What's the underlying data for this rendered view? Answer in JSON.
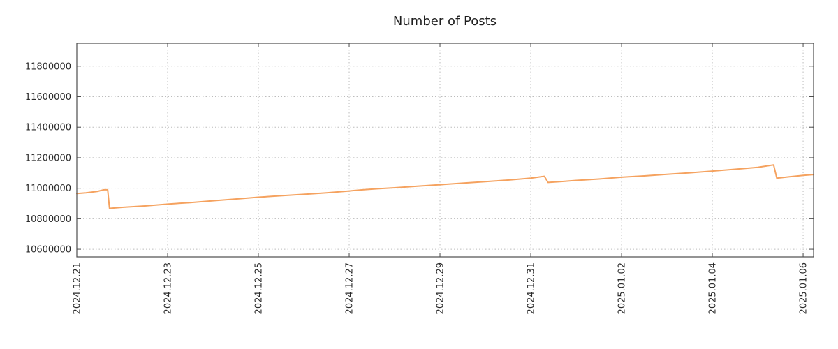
{
  "chart_data": {
    "type": "line",
    "title": "Number of Posts",
    "xlabel": "",
    "ylabel": "",
    "grid": true,
    "legend": "none",
    "xlim": [
      0,
      16.23
    ],
    "ylim": [
      10550000,
      11950000
    ],
    "x_tick_unit": "days since 2024.12.21",
    "x_ticks": [
      {
        "pos": 0,
        "label": "2024.12.21"
      },
      {
        "pos": 2,
        "label": "2024.12.23"
      },
      {
        "pos": 4,
        "label": "2024.12.25"
      },
      {
        "pos": 6,
        "label": "2024.12.27"
      },
      {
        "pos": 8,
        "label": "2024.12.29"
      },
      {
        "pos": 10,
        "label": "2024.12.31"
      },
      {
        "pos": 12,
        "label": "2025.01.02"
      },
      {
        "pos": 14,
        "label": "2025.01.04"
      },
      {
        "pos": 16,
        "label": "2025.01.06"
      }
    ],
    "y_ticks": [
      {
        "value": 10600000,
        "label": "10600000"
      },
      {
        "value": 10800000,
        "label": "10800000"
      },
      {
        "value": 11000000,
        "label": "11000000"
      },
      {
        "value": 11200000,
        "label": "11200000"
      },
      {
        "value": 11400000,
        "label": "11400000"
      },
      {
        "value": 11600000,
        "label": "11600000"
      },
      {
        "value": 11800000,
        "label": "11800000"
      }
    ],
    "series": [
      {
        "name": "number-of-posts",
        "color": "#f5a25f",
        "points": [
          [
            0.0,
            10965000
          ],
          [
            0.2,
            10970000
          ],
          [
            0.45,
            10979000
          ],
          [
            0.6,
            10990000
          ],
          [
            0.68,
            10990000
          ],
          [
            0.72,
            10868000
          ],
          [
            1.0,
            10875000
          ],
          [
            1.5,
            10884000
          ],
          [
            2.0,
            10896000
          ],
          [
            2.5,
            10906000
          ],
          [
            3.0,
            10918000
          ],
          [
            3.5,
            10929000
          ],
          [
            4.0,
            10941000
          ],
          [
            4.5,
            10951000
          ],
          [
            5.0,
            10960000
          ],
          [
            5.5,
            10970000
          ],
          [
            6.0,
            10982000
          ],
          [
            6.3,
            10990000
          ],
          [
            6.6,
            10996000
          ],
          [
            7.0,
            11003000
          ],
          [
            7.5,
            11013000
          ],
          [
            8.0,
            11023000
          ],
          [
            8.5,
            11033000
          ],
          [
            9.0,
            11043000
          ],
          [
            9.5,
            11053000
          ],
          [
            10.0,
            11066000
          ],
          [
            10.25,
            11076000
          ],
          [
            10.3,
            11078000
          ],
          [
            10.38,
            11038000
          ],
          [
            10.7,
            11044000
          ],
          [
            11.0,
            11051000
          ],
          [
            11.5,
            11060000
          ],
          [
            12.0,
            11072000
          ],
          [
            12.5,
            11081000
          ],
          [
            13.0,
            11091000
          ],
          [
            13.5,
            11101000
          ],
          [
            14.0,
            11112000
          ],
          [
            14.5,
            11124000
          ],
          [
            15.0,
            11137000
          ],
          [
            15.25,
            11148000
          ],
          [
            15.35,
            11153000
          ],
          [
            15.42,
            11066000
          ],
          [
            15.7,
            11075000
          ],
          [
            16.0,
            11084000
          ],
          [
            16.23,
            11089000
          ]
        ]
      }
    ],
    "colors": {
      "line": "#f5a25f",
      "grid": "#bcbcbc",
      "border": "#4d4d4d",
      "text": "#2b2b2b",
      "background": "#ffffff"
    }
  }
}
